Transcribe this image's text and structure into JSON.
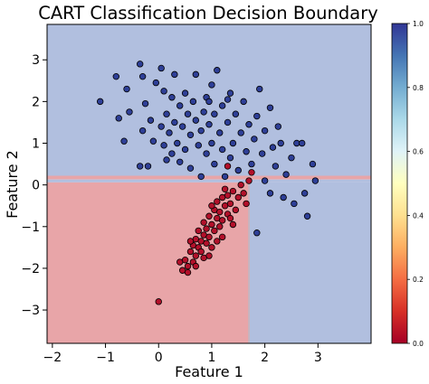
{
  "chart_data": {
    "type": "scatter",
    "title": "CART Classification Decision Boundary",
    "xlabel": "Feature 1",
    "ylabel": "Feature 2",
    "xlim": [
      -2.1,
      4.0
    ],
    "ylim": [
      -3.8,
      3.85
    ],
    "xticks": [
      -2,
      -1,
      0,
      1,
      2,
      3
    ],
    "yticks": [
      -3,
      -2,
      -1,
      0,
      1,
      2,
      3
    ],
    "grid": false,
    "colormap": "RdYlBu",
    "colorbar": {
      "min": 0.0,
      "max": 1.0,
      "ticks": [
        "0.0",
        "0.2",
        "0.4",
        "0.6",
        "0.8",
        "1.0"
      ]
    },
    "colors": {
      "class0_point": "#b2102a",
      "class1_point": "#2e3f97",
      "class0_region": "#e8a5a8",
      "class1_region": "#b1bfdf",
      "boundary_line": "#c7b4bf"
    },
    "decision_regions": [
      {
        "class": 1,
        "x": [
          -2.1,
          4.0
        ],
        "y": [
          0.22,
          3.85
        ]
      },
      {
        "class": 0,
        "x": [
          -2.1,
          4.0
        ],
        "y": [
          0.13,
          0.22
        ]
      },
      {
        "class": 1,
        "x": [
          -2.1,
          1.7
        ],
        "y": [
          0.06,
          0.13
        ]
      },
      {
        "class": 1,
        "x": [
          1.7,
          4.0
        ],
        "y": [
          0.06,
          0.13
        ]
      },
      {
        "class": 0,
        "x": [
          -2.1,
          1.7
        ],
        "y": [
          -3.8,
          0.06
        ]
      },
      {
        "class": 1,
        "x": [
          1.7,
          4.0
        ],
        "y": [
          -3.8,
          0.06
        ]
      }
    ],
    "series": [
      {
        "class": 1,
        "points": [
          [
            -1.1,
            2.0
          ],
          [
            -0.8,
            2.6
          ],
          [
            -0.75,
            1.6
          ],
          [
            -0.6,
            2.3
          ],
          [
            -0.65,
            1.05
          ],
          [
            -0.55,
            1.75
          ],
          [
            -0.35,
            2.9
          ],
          [
            -0.3,
            2.6
          ],
          [
            -0.3,
            1.3
          ],
          [
            -0.35,
            0.45
          ],
          [
            -0.25,
            1.95
          ],
          [
            -0.15,
            1.55
          ],
          [
            -0.1,
            1.05
          ],
          [
            -0.05,
            2.45
          ],
          [
            0.05,
            2.8
          ],
          [
            0.05,
            1.4
          ],
          [
            0.1,
            2.25
          ],
          [
            0.1,
            0.95
          ],
          [
            0.15,
            1.7
          ],
          [
            0.2,
            1.25
          ],
          [
            0.25,
            2.1
          ],
          [
            0.25,
            0.75
          ],
          [
            0.3,
            1.5
          ],
          [
            0.3,
            2.65
          ],
          [
            0.35,
            1.0
          ],
          [
            0.4,
            1.9
          ],
          [
            0.4,
            0.55
          ],
          [
            0.45,
            1.4
          ],
          [
            0.5,
            2.2
          ],
          [
            0.5,
            0.85
          ],
          [
            0.55,
            1.7
          ],
          [
            0.6,
            1.2
          ],
          [
            0.6,
            0.4
          ],
          [
            0.65,
            2.0
          ],
          [
            0.7,
            1.55
          ],
          [
            0.7,
            2.65
          ],
          [
            0.75,
            0.95
          ],
          [
            0.8,
            1.3
          ],
          [
            0.8,
            0.2
          ],
          [
            0.85,
            1.75
          ],
          [
            0.9,
            2.1
          ],
          [
            0.9,
            0.75
          ],
          [
            0.95,
            1.45
          ],
          [
            1.0,
            1.0
          ],
          [
            1.0,
            2.4
          ],
          [
            1.05,
            0.5
          ],
          [
            1.05,
            1.7
          ],
          [
            1.1,
            2.75
          ],
          [
            1.15,
            1.25
          ],
          [
            1.2,
            0.85
          ],
          [
            1.2,
            1.9
          ],
          [
            1.25,
            0.2
          ],
          [
            1.3,
            1.5
          ],
          [
            1.35,
            2.2
          ],
          [
            1.35,
            0.65
          ],
          [
            1.4,
            1.0
          ],
          [
            1.45,
            1.7
          ],
          [
            1.5,
            0.35
          ],
          [
            1.55,
            1.25
          ],
          [
            1.6,
            2.0
          ],
          [
            1.65,
            0.8
          ],
          [
            1.7,
            1.45
          ],
          [
            1.75,
            0.5
          ],
          [
            1.8,
            1.1
          ],
          [
            1.85,
            1.65
          ],
          [
            1.9,
            2.3
          ],
          [
            1.95,
            0.75
          ],
          [
            2.0,
            1.3
          ],
          [
            2.0,
            0.1
          ],
          [
            2.1,
            1.85
          ],
          [
            2.15,
            0.9
          ],
          [
            2.2,
            0.45
          ],
          [
            2.25,
            1.4
          ],
          [
            2.3,
            1.0
          ],
          [
            2.35,
            -0.3
          ],
          [
            2.4,
            0.25
          ],
          [
            2.5,
            0.65
          ],
          [
            2.55,
            -0.45
          ],
          [
            2.6,
            1.0
          ],
          [
            2.7,
            1.0
          ],
          [
            2.75,
            -0.2
          ],
          [
            2.8,
            -0.75
          ],
          [
            2.9,
            0.5
          ],
          [
            2.95,
            0.1
          ],
          [
            1.85,
            -1.15
          ],
          [
            2.1,
            -0.2
          ],
          [
            1.3,
            2.05
          ],
          [
            0.15,
            0.6
          ],
          [
            -0.2,
            0.45
          ],
          [
            0.95,
            2.0
          ]
        ]
      },
      {
        "class": 0,
        "points": [
          [
            0.0,
            -2.8
          ],
          [
            0.4,
            -1.85
          ],
          [
            0.45,
            -2.05
          ],
          [
            0.5,
            -1.8
          ],
          [
            0.55,
            -1.95
          ],
          [
            0.55,
            -2.1
          ],
          [
            0.6,
            -1.6
          ],
          [
            0.65,
            -1.85
          ],
          [
            0.65,
            -1.45
          ],
          [
            0.7,
            -1.7
          ],
          [
            0.7,
            -1.3
          ],
          [
            0.75,
            -1.5
          ],
          [
            0.75,
            -1.1
          ],
          [
            0.8,
            -1.35
          ],
          [
            0.8,
            -1.6
          ],
          [
            0.85,
            -1.2
          ],
          [
            0.85,
            -0.9
          ],
          [
            0.9,
            -1.4
          ],
          [
            0.9,
            -1.05
          ],
          [
            0.95,
            -0.75
          ],
          [
            0.95,
            -1.25
          ],
          [
            1.0,
            -0.95
          ],
          [
            1.0,
            -1.5
          ],
          [
            1.05,
            -0.6
          ],
          [
            1.05,
            -1.1
          ],
          [
            1.1,
            -0.8
          ],
          [
            1.1,
            -0.4
          ],
          [
            1.15,
            -0.65
          ],
          [
            1.15,
            -1.0
          ],
          [
            1.2,
            -0.3
          ],
          [
            1.2,
            -0.85
          ],
          [
            1.25,
            -0.5
          ],
          [
            1.25,
            -0.1
          ],
          [
            1.3,
            -0.7
          ],
          [
            1.3,
            -0.25
          ],
          [
            1.35,
            -0.45
          ],
          [
            1.4,
            -0.15
          ],
          [
            1.45,
            -0.6
          ],
          [
            1.5,
            -0.3
          ],
          [
            1.55,
            0.0
          ],
          [
            1.6,
            -0.2
          ],
          [
            1.65,
            -0.45
          ],
          [
            1.7,
            0.1
          ],
          [
            1.75,
            0.3
          ],
          [
            1.3,
            0.45
          ],
          [
            0.95,
            -1.7
          ],
          [
            0.6,
            -1.35
          ],
          [
            1.0,
            -0.5
          ],
          [
            1.4,
            -0.95
          ],
          [
            1.2,
            -1.25
          ],
          [
            0.85,
            -1.75
          ],
          [
            0.7,
            -1.95
          ],
          [
            1.1,
            -1.35
          ],
          [
            1.35,
            -0.8
          ]
        ]
      }
    ]
  }
}
